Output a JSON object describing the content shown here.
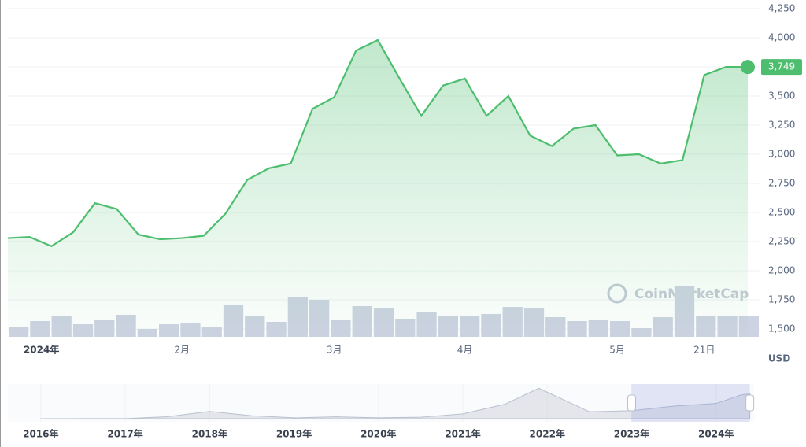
{
  "chart_data": [
    {
      "type": "line",
      "categories": [
        null,
        "2024年",
        null,
        null,
        null,
        null,
        null,
        null,
        "2月",
        null,
        null,
        null,
        null,
        null,
        null,
        "3月",
        null,
        null,
        null,
        null,
        null,
        "4月",
        null,
        null,
        null,
        null,
        null,
        null,
        "5月",
        null,
        null,
        null,
        "21日",
        null,
        null
      ],
      "series": [
        {
          "type": "line",
          "color": "#4dbd6e",
          "values": [
            2280,
            2290,
            2210,
            2330,
            2580,
            2530,
            2310,
            2270,
            2280,
            2300,
            2490,
            2780,
            2880,
            2920,
            3390,
            3490,
            3890,
            3980,
            3650,
            3330,
            3590,
            3650,
            3330,
            3500,
            3160,
            3070,
            3220,
            3250,
            2990,
            3000,
            2920,
            2950,
            3680,
            3749,
            3749
          ],
          "value_labels": [
            null,
            null,
            null,
            null,
            null,
            null,
            null,
            null,
            null,
            null,
            null,
            null,
            null,
            null,
            null,
            null,
            null,
            null,
            null,
            null,
            null,
            null,
            null,
            null,
            null,
            null,
            null,
            null,
            null,
            null,
            null,
            null,
            null,
            null,
            "3,749"
          ]
        },
        {
          "type": "bar",
          "color": "#cdd3e2",
          "values": [
            13,
            20,
            26,
            16,
            21,
            28,
            10,
            16,
            17,
            12,
            41,
            26,
            19,
            50,
            47,
            22,
            39,
            37,
            23,
            32,
            27,
            26,
            29,
            38,
            36,
            25,
            20,
            22,
            20,
            11,
            25,
            65,
            26,
            27,
            27
          ]
        }
      ],
      "ylim": [
        1500,
        4250
      ],
      "yticks": [
        {
          "value": 1500,
          "label": "1,500"
        },
        {
          "value": 1750,
          "label": "1,750"
        },
        {
          "value": 2000,
          "label": "2,000"
        },
        {
          "value": 2250,
          "label": "2,250"
        },
        {
          "value": 2500,
          "label": "2,500"
        },
        {
          "value": 2750,
          "label": "2,750"
        },
        {
          "value": 3000,
          "label": "3,000"
        },
        {
          "value": 3250,
          "label": "3,250"
        },
        {
          "value": 3500,
          "label": "3,500"
        },
        {
          "value": 3750,
          "label": "3,750"
        },
        {
          "value": 4000,
          "label": "4,000"
        },
        {
          "value": 4250,
          "label": "4,250"
        }
      ],
      "grid": true,
      "y_unit": "USD",
      "watermark": "CoinMarketCap"
    },
    {
      "type": "area",
      "x": [
        2016.0,
        2016.5,
        2017.0,
        2017.5,
        2018.0,
        2018.5,
        2019.0,
        2019.5,
        2020.0,
        2020.5,
        2021.0,
        2021.5,
        2021.9,
        2022.5,
        2023.0,
        2023.5,
        2024.0,
        2024.3,
        2024.4
      ],
      "values": [
        1,
        12,
        8,
        300,
        1100,
        450,
        130,
        290,
        130,
        230,
        730,
        2200,
        4600,
        1050,
        1200,
        1900,
        2300,
        3600,
        3749
      ],
      "color": "#b9c1cf",
      "xlim": [
        2015.61,
        2024.45
      ],
      "ylim": [
        0,
        5000
      ],
      "xticks": [
        {
          "value": 2016,
          "label": "2016年"
        },
        {
          "value": 2017,
          "label": "2017年"
        },
        {
          "value": 2018,
          "label": "2018年"
        },
        {
          "value": 2019,
          "label": "2019年"
        },
        {
          "value": 2020,
          "label": "2020年"
        },
        {
          "value": 2021,
          "label": "2021年"
        },
        {
          "value": 2022,
          "label": "2022年"
        },
        {
          "value": 2023,
          "label": "2023年"
        },
        {
          "value": 2024,
          "label": "2024年"
        }
      ],
      "selection": [
        2023.0,
        2024.4
      ]
    }
  ]
}
